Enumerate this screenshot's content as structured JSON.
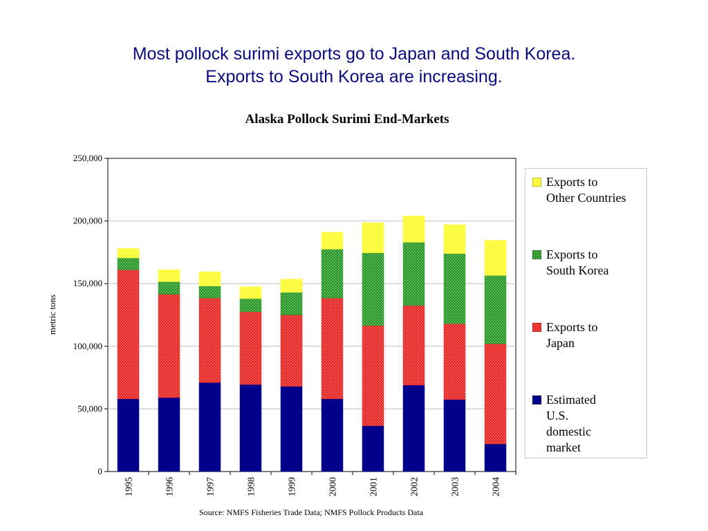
{
  "slide": {
    "headline_line1": "Most pollock surimi exports go to Japan and South Korea.",
    "headline_line2": "Exports to South Korea are increasing.",
    "source": "Source:  NMFS Fisheries Trade Data; NMFS Pollock Products Data"
  },
  "legend": [
    {
      "line1": "Exports to",
      "line2": "Other Countries",
      "line3": "",
      "line4": "",
      "color": "#ffff33"
    },
    {
      "line1": "Exports to",
      "line2": "South Korea",
      "line3": "",
      "line4": "",
      "color": "#2e9a2e"
    },
    {
      "line1": "Exports to",
      "line2": "Japan",
      "line3": "",
      "line4": "",
      "color": "#ee2b2b"
    },
    {
      "line1": "Estimated",
      "line2": "U.S.",
      "line3": "domestic",
      "line4": "market",
      "color": "#00008b"
    }
  ],
  "chart_data": {
    "type": "bar",
    "stacked": true,
    "title": "Alaska Pollock Surimi End-Markets",
    "xlabel": "",
    "ylabel": "metric tons",
    "ylim": [
      0,
      250000
    ],
    "yticks": [
      0,
      50000,
      100000,
      150000,
      200000,
      250000
    ],
    "ytick_labels": [
      "0",
      "50,000",
      "100,000",
      "150,000",
      "200,000",
      "250,000"
    ],
    "grid": true,
    "legend_position": "right",
    "categories": [
      "1995",
      "1996",
      "1997",
      "1998",
      "1999",
      "2000",
      "2001",
      "2002",
      "2003",
      "2004"
    ],
    "series": [
      {
        "name": "Estimated U.S. domestic market",
        "color": "#00008b",
        "pattern": "solid",
        "values": [
          58000,
          59000,
          71000,
          69500,
          68000,
          58000,
          36500,
          69000,
          57500,
          22000
        ]
      },
      {
        "name": "Exports to Japan",
        "color": "#ee2b2b",
        "pattern": "dots",
        "values": [
          103000,
          82500,
          67500,
          58000,
          57000,
          80500,
          80000,
          63500,
          60500,
          80000
        ]
      },
      {
        "name": "Exports to South Korea",
        "color": "#2e9a2e",
        "pattern": "dots",
        "values": [
          9500,
          10000,
          9500,
          10500,
          18000,
          39000,
          58000,
          50500,
          56000,
          54500
        ]
      },
      {
        "name": "Exports to Other Countries",
        "color": "#ffff33",
        "pattern": "dots",
        "values": [
          7500,
          9500,
          11500,
          9500,
          10500,
          13500,
          24000,
          21000,
          23000,
          28000
        ]
      }
    ]
  }
}
